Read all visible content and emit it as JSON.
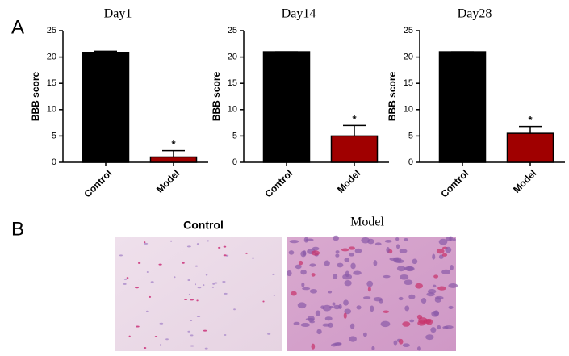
{
  "panel_labels": [
    "A",
    "B"
  ],
  "chart_data": [
    {
      "type": "bar",
      "title": "Day1",
      "y_label": "BBB score",
      "categories": [
        "Control",
        "Model"
      ],
      "values": [
        20.8,
        1.0
      ],
      "errors": [
        0.3,
        1.2
      ],
      "significance": [
        null,
        "*"
      ],
      "colors": [
        "#000000",
        "#a00000"
      ],
      "ylim": [
        0,
        25
      ],
      "yticks": [
        0,
        5,
        10,
        15,
        20,
        25
      ]
    },
    {
      "type": "bar",
      "title": "Day14",
      "y_label": "BBB score",
      "categories": [
        "Control",
        "Model"
      ],
      "values": [
        21.0,
        5.0
      ],
      "errors": [
        0,
        2.0
      ],
      "significance": [
        null,
        "*"
      ],
      "colors": [
        "#000000",
        "#a00000"
      ],
      "ylim": [
        0,
        25
      ],
      "yticks": [
        0,
        5,
        10,
        15,
        20,
        25
      ]
    },
    {
      "type": "bar",
      "title": "Day28",
      "y_label": "BBB score",
      "categories": [
        "Control",
        "Model"
      ],
      "values": [
        21.0,
        5.5
      ],
      "errors": [
        0,
        1.3
      ],
      "significance": [
        null,
        "*"
      ],
      "colors": [
        "#000000",
        "#a00000"
      ],
      "ylim": [
        0,
        25
      ],
      "yticks": [
        0,
        5,
        10,
        15,
        20,
        25
      ]
    }
  ],
  "images": [
    {
      "caption": "Control"
    },
    {
      "caption": "Model"
    }
  ]
}
